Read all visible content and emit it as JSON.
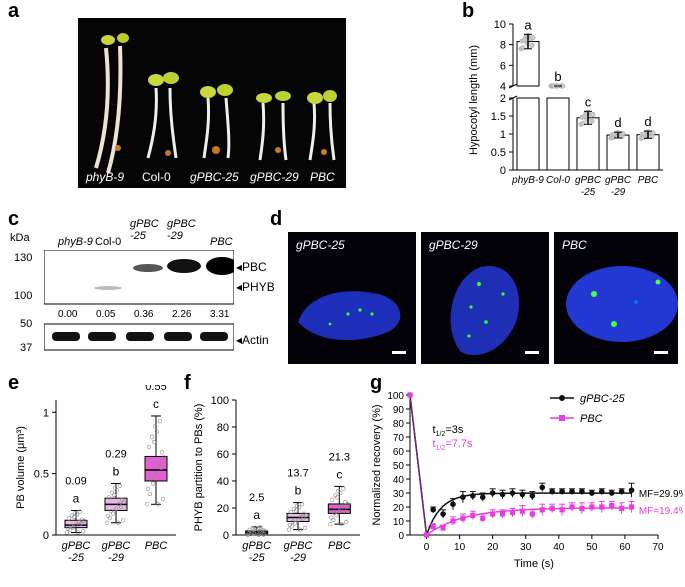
{
  "panels": {
    "a": "a",
    "b": "b",
    "c": "c",
    "d": "d",
    "e": "e",
    "f": "f",
    "g": "g"
  },
  "panel_a": {
    "labels": [
      "phyB-9",
      "Col-0",
      "gPBC-25",
      "gPBC-29",
      "PBC"
    ]
  },
  "panel_b": {
    "chart_data": {
      "type": "bar",
      "categories": [
        "phyB-9",
        "Col-0",
        "gPBC\n-25",
        "gPBC\n-29",
        "PBC"
      ],
      "values": [
        8.3,
        3.5,
        1.45,
        0.97,
        0.98
      ],
      "errors": [
        0.7,
        0.35,
        0.18,
        0.08,
        0.1
      ],
      "letters": [
        "a",
        "b",
        "c",
        "d",
        "d"
      ],
      "ylabel": "Hypocotyl length (mm)",
      "yticks_upper": [
        4,
        6,
        8,
        10
      ],
      "yticks_lower": [
        0,
        0.5,
        1,
        1.5,
        2
      ],
      "ylim_upper": [
        4,
        10
      ],
      "ylim_lower": [
        0,
        2
      ],
      "axis_break": true
    }
  },
  "panel_c": {
    "unit": "kDa",
    "lanes": [
      "phyB-9",
      "Col-0",
      "gPBC\n-25",
      "gPBC\n-29",
      "PBC"
    ],
    "markers_top": [
      "130",
      "100"
    ],
    "markers_bottom": [
      "50",
      "37"
    ],
    "band_labels": [
      "PBC",
      "PHYB"
    ],
    "loading_label": "Actin",
    "quant": [
      "0.00",
      "0.05",
      "0.36",
      "2.26",
      "3.31"
    ]
  },
  "panel_d": {
    "images": [
      "gPBC-25",
      "gPBC-29",
      "PBC"
    ]
  },
  "panel_e": {
    "chart_data": {
      "type": "box",
      "categories": [
        "gPBC\n-25",
        "gPBC\n-29",
        "PBC"
      ],
      "medians": [
        0.08,
        0.25,
        0.53
      ],
      "q1": [
        0.06,
        0.2,
        0.44
      ],
      "q3": [
        0.12,
        0.3,
        0.64
      ],
      "whisker_low": [
        0.02,
        0.1,
        0.25
      ],
      "whisker_high": [
        0.2,
        0.42,
        0.97
      ],
      "means_text": [
        "0.09",
        "0.29",
        "0.55"
      ],
      "letters": [
        "a",
        "b",
        "c"
      ],
      "ylabel": "PB volume (μm³)",
      "yticks": [
        0,
        0.5,
        1
      ],
      "ylim": [
        0,
        1.1
      ]
    }
  },
  "panel_f": {
    "chart_data": {
      "type": "box",
      "categories": [
        "gPBC\n-25",
        "gPBC\n-29",
        "PBC"
      ],
      "medians": [
        2,
        13,
        19
      ],
      "q1": [
        1,
        10,
        16
      ],
      "q3": [
        3,
        16,
        23
      ],
      "whisker_low": [
        0,
        4,
        8
      ],
      "whisker_high": [
        6,
        24,
        36
      ],
      "means_text": [
        "2.5",
        "13.7",
        "21.3"
      ],
      "letters": [
        "a",
        "b",
        "c"
      ],
      "ylabel": "PHYB partition to PBs (%)",
      "yticks": [
        0,
        20,
        40,
        60,
        80,
        100
      ],
      "ylim": [
        0,
        100
      ]
    }
  },
  "panel_g": {
    "chart_data": {
      "type": "line",
      "xlabel": "Time (s)",
      "ylabel": "Normalized recovery (%)",
      "xlim": [
        -5,
        70
      ],
      "ylim": [
        0,
        100
      ],
      "xticks": [
        0,
        10,
        20,
        30,
        40,
        50,
        60,
        70
      ],
      "yticks": [
        0,
        10,
        20,
        30,
        40,
        50,
        60,
        70,
        80,
        90,
        100
      ],
      "series": [
        {
          "name": "gPBC-25",
          "color": "#111111",
          "x": [
            -5,
            0,
            2,
            5,
            8,
            11,
            14,
            17,
            20,
            23,
            26,
            29,
            32,
            35,
            38,
            41,
            44,
            47,
            50,
            53,
            56,
            59,
            62
          ],
          "y": [
            100,
            0,
            18,
            15,
            22,
            27,
            28,
            27,
            30,
            29,
            30,
            29,
            28,
            34,
            31,
            31,
            31,
            31,
            30,
            31,
            30,
            31,
            32
          ],
          "err": [
            0,
            0,
            2,
            3,
            4,
            4,
            3,
            3,
            3,
            3,
            3,
            3,
            3,
            3,
            2,
            2,
            2,
            2,
            2,
            2,
            2,
            2,
            5
          ]
        },
        {
          "name": "PBC",
          "color": "#e83ee0",
          "x": [
            -5,
            0,
            2,
            5,
            8,
            11,
            14,
            17,
            20,
            23,
            26,
            29,
            32,
            35,
            38,
            41,
            44,
            47,
            50,
            53,
            56,
            59,
            62
          ],
          "y": [
            100,
            0,
            6,
            5,
            10,
            12,
            14,
            12,
            15,
            15,
            16,
            17,
            15,
            18,
            19,
            18,
            20,
            19,
            20,
            20,
            21,
            19,
            20
          ],
          "err": [
            0,
            0,
            2,
            2,
            3,
            3,
            3,
            3,
            3,
            3,
            3,
            4,
            3,
            4,
            3,
            4,
            3,
            4,
            3,
            4,
            3,
            4,
            4
          ]
        }
      ],
      "annotations": {
        "t_half_black": "t",
        "t_half_black_sub": "1/2",
        "t_half_black_val": "=3s",
        "t_half_pink": "t",
        "t_half_pink_sub": "1/2",
        "t_half_pink_val": "=7.7s",
        "mf_black": "MF=29.9%",
        "mf_pink": "MF=19.4%"
      }
    }
  }
}
